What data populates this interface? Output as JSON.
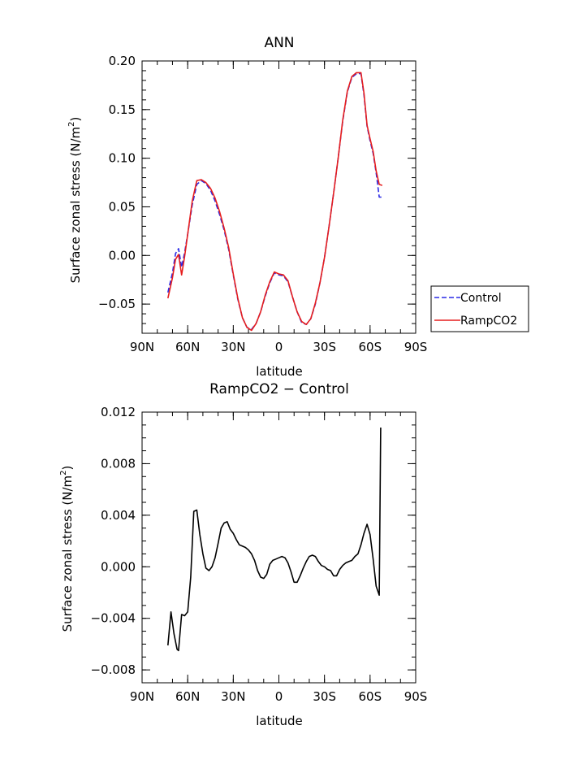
{
  "chart_data": [
    {
      "type": "line",
      "title": "ANN",
      "xlabel": "latitude",
      "ylabel_main": "Surface zonal stress (N/m",
      "ylabel_sup": "2",
      "ylabel_close": ")",
      "xlim": [
        90,
        -90
      ],
      "ylim": [
        -0.08,
        0.2
      ],
      "xticks": [
        90,
        60,
        30,
        0,
        -30,
        -60,
        -90
      ],
      "xtick_labels": [
        "90N",
        "60N",
        "30N",
        "0",
        "30S",
        "60S",
        "90S"
      ],
      "yticks": [
        -0.05,
        0.0,
        0.05,
        0.1,
        0.15,
        0.2
      ],
      "ytick_labels": [
        "−0.05",
        "0.00",
        "0.05",
        "0.10",
        "0.15",
        "0.20"
      ],
      "legend": {
        "placement": "right",
        "entries": [
          "Control",
          "RampCO2"
        ]
      },
      "series": [
        {
          "name": "Control",
          "color": "#2a2ae6",
          "dash": "dashed",
          "x": [
            73,
            70,
            68,
            66,
            64,
            62,
            60,
            57,
            54,
            51,
            48,
            45,
            42,
            39,
            36,
            33,
            30,
            27,
            24,
            21,
            18,
            15,
            12,
            9,
            6,
            3,
            0,
            -3,
            -6,
            -9,
            -12,
            -15,
            -18,
            -21,
            -24,
            -27,
            -30,
            -33,
            -36,
            -39,
            -42,
            -45,
            -48,
            -51,
            -54,
            -56,
            -58,
            -60,
            -62,
            -64,
            -66,
            -68
          ],
          "y": [
            -0.038,
            -0.018,
            0.002,
            0.007,
            -0.012,
            0.003,
            0.022,
            0.052,
            0.073,
            0.077,
            0.074,
            0.067,
            0.056,
            0.042,
            0.026,
            0.006,
            -0.02,
            -0.045,
            -0.064,
            -0.074,
            -0.076,
            -0.07,
            -0.058,
            -0.042,
            -0.028,
            -0.018,
            -0.02,
            -0.021,
            -0.027,
            -0.043,
            -0.058,
            -0.069,
            -0.071,
            -0.065,
            -0.05,
            -0.028,
            -0.002,
            0.03,
            0.064,
            0.1,
            0.138,
            0.168,
            0.183,
            0.187,
            0.187,
            0.165,
            0.133,
            0.118,
            0.105,
            0.085,
            0.06,
            0.06
          ]
        },
        {
          "name": "RampCO2",
          "color": "#e61e1e",
          "dash": "solid",
          "x": [
            73,
            70,
            68,
            66,
            64,
            62,
            60,
            57,
            54,
            51,
            48,
            45,
            42,
            39,
            36,
            33,
            30,
            27,
            24,
            21,
            18,
            15,
            12,
            9,
            6,
            3,
            0,
            -3,
            -6,
            -9,
            -12,
            -15,
            -18,
            -21,
            -24,
            -27,
            -30,
            -33,
            -36,
            -39,
            -42,
            -45,
            -48,
            -51,
            -54,
            -56,
            -58,
            -60,
            -62,
            -64,
            -66,
            -68
          ],
          "y": [
            -0.044,
            -0.023,
            -0.004,
            0.001,
            -0.02,
            -0.001,
            0.022,
            0.056,
            0.077,
            0.078,
            0.075,
            0.069,
            0.059,
            0.045,
            0.028,
            0.008,
            -0.019,
            -0.044,
            -0.064,
            -0.074,
            -0.077,
            -0.07,
            -0.058,
            -0.041,
            -0.027,
            -0.017,
            -0.019,
            -0.02,
            -0.026,
            -0.043,
            -0.058,
            -0.068,
            -0.071,
            -0.065,
            -0.049,
            -0.028,
            -0.002,
            0.03,
            0.064,
            0.1,
            0.139,
            0.169,
            0.184,
            0.188,
            0.188,
            0.167,
            0.134,
            0.12,
            0.107,
            0.087,
            0.073,
            0.072
          ]
        }
      ]
    },
    {
      "type": "line",
      "title": "RampCO2 − Control",
      "xlabel": "latitude",
      "ylabel_main": "Surface zonal stress (N/m",
      "ylabel_sup": "2",
      "ylabel_close": ")",
      "xlim": [
        90,
        -90
      ],
      "ylim": [
        -0.009,
        0.012
      ],
      "xticks": [
        90,
        60,
        30,
        0,
        -30,
        -60,
        -90
      ],
      "xtick_labels": [
        "90N",
        "60N",
        "30N",
        "0",
        "30S",
        "60S",
        "90S"
      ],
      "yticks": [
        -0.008,
        -0.004,
        0.0,
        0.004,
        0.008,
        0.012
      ],
      "ytick_labels": [
        "−0.008",
        "−0.004",
        "0.000",
        "0.004",
        "0.008",
        "0.012"
      ],
      "series": [
        {
          "name": "",
          "color": "#000000",
          "dash": "solid",
          "x": [
            73,
            71,
            69,
            67,
            66,
            64,
            62,
            60,
            58,
            56,
            54,
            52,
            50,
            48,
            46,
            44,
            42,
            40,
            38,
            36,
            34,
            32,
            30,
            28,
            26,
            24,
            22,
            20,
            18,
            16,
            14,
            12,
            10,
            8,
            6,
            4,
            2,
            0,
            -2,
            -4,
            -6,
            -8,
            -10,
            -12,
            -14,
            -16,
            -18,
            -20,
            -22,
            -24,
            -26,
            -28,
            -30,
            -32,
            -34,
            -36,
            -38,
            -40,
            -42,
            -44,
            -46,
            -48,
            -50,
            -52,
            -54,
            -56,
            -58,
            -60,
            -62,
            -64,
            -66,
            -67
          ],
          "y": [
            -0.0061,
            -0.0035,
            -0.0052,
            -0.0064,
            -0.0065,
            -0.0037,
            -0.0038,
            -0.0035,
            -0.0008,
            0.0043,
            0.0044,
            0.0025,
            0.001,
            -0.0001,
            -0.0003,
            0.0,
            0.0007,
            0.0018,
            0.003,
            0.0034,
            0.0035,
            0.0029,
            0.0026,
            0.0021,
            0.0017,
            0.0016,
            0.0015,
            0.0013,
            0.001,
            0.0005,
            -0.0003,
            -0.0008,
            -0.0009,
            -0.0006,
            0.0002,
            0.0005,
            0.0006,
            0.0007,
            0.0008,
            0.0007,
            0.0003,
            -0.0004,
            -0.0012,
            -0.0012,
            -0.0007,
            -0.0001,
            0.0004,
            0.0008,
            0.0009,
            0.0008,
            0.0004,
            0.0001,
            0.0,
            -0.0002,
            -0.0003,
            -0.0007,
            -0.0007,
            -0.0002,
            0.0001,
            0.0003,
            0.0004,
            0.0005,
            0.0008,
            0.001,
            0.0017,
            0.0026,
            0.0033,
            0.0025,
            0.0006,
            -0.0015,
            -0.0022,
            0.0108
          ]
        }
      ]
    }
  ]
}
